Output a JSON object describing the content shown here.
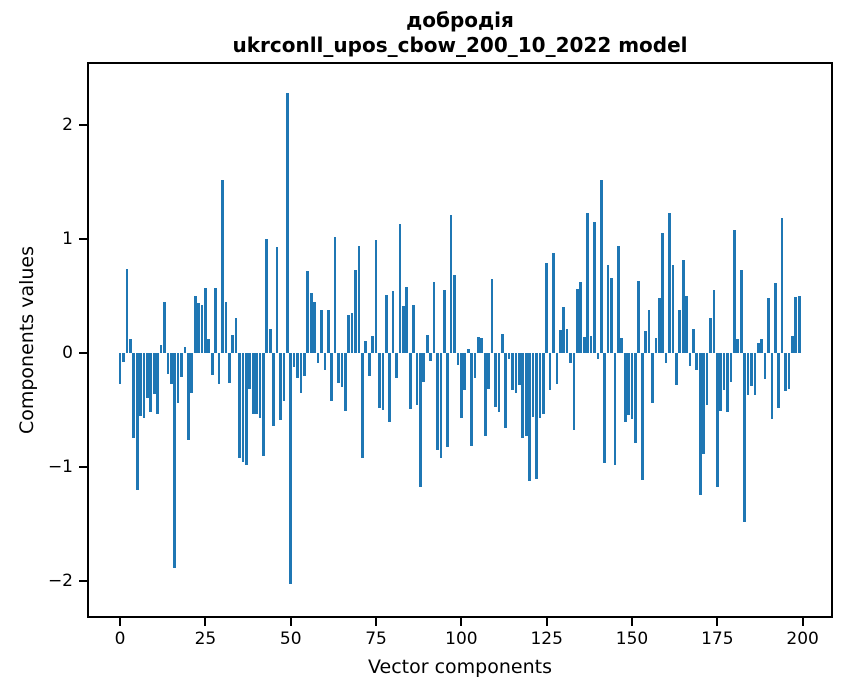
{
  "chart_data": {
    "type": "bar",
    "title_line1": "добродія",
    "title_line2": "ukrconll_upos_cbow_200_10_2022 model",
    "xlabel": "Vector components",
    "ylabel": "Components values",
    "bar_color": "#1f77b4",
    "background_color": "#ffffff",
    "grid": false,
    "legend_position": "none",
    "n_components": 200,
    "x_ticks": [
      0,
      25,
      50,
      75,
      100,
      125,
      150,
      175,
      200
    ],
    "y_ticks": [
      -2,
      -1,
      0,
      1,
      2
    ],
    "xlim": [
      -9.7,
      208.9
    ],
    "ylim": [
      -2.32,
      2.55
    ],
    "values": [
      -0.27,
      -0.08,
      0.74,
      0.12,
      -0.74,
      -1.2,
      -0.55,
      -0.57,
      -0.39,
      -0.52,
      -0.36,
      -0.53,
      0.07,
      0.45,
      -0.18,
      -0.27,
      -1.88,
      -0.44,
      -0.21,
      0.05,
      -0.76,
      -0.35,
      0.5,
      0.44,
      0.42,
      0.57,
      0.12,
      -0.19,
      0.57,
      -0.27,
      1.52,
      0.45,
      -0.26,
      0.16,
      0.31,
      -0.92,
      -0.95,
      -0.98,
      -0.31,
      -0.53,
      -0.53,
      -0.57,
      -0.9,
      1.0,
      0.21,
      -0.64,
      0.93,
      -0.59,
      -0.42,
      2.28,
      -2.02,
      -0.12,
      -0.22,
      -0.35,
      -0.2,
      0.72,
      0.53,
      0.45,
      -0.09,
      0.38,
      -0.15,
      0.38,
      -0.42,
      1.02,
      -0.26,
      -0.3,
      -0.51,
      0.33,
      0.35,
      0.73,
      0.94,
      -0.92,
      0.11,
      -0.2,
      0.15,
      0.99,
      -0.48,
      -0.5,
      0.51,
      -0.6,
      0.54,
      -0.22,
      1.13,
      0.41,
      0.58,
      -0.49,
      0.42,
      -0.45,
      -1.17,
      -0.25,
      0.16,
      -0.07,
      0.62,
      -0.85,
      -0.92,
      0.55,
      -0.82,
      1.21,
      0.68,
      -0.1,
      -0.57,
      -0.32,
      0.04,
      -0.81,
      -0.22,
      0.14,
      0.13,
      -0.73,
      -0.31,
      0.65,
      -0.47,
      -0.52,
      0.17,
      -0.66,
      -0.05,
      -0.32,
      -0.35,
      -0.28,
      -0.74,
      -0.73,
      -1.12,
      -0.56,
      -1.1,
      -0.57,
      -0.53,
      0.79,
      -0.32,
      0.88,
      -0.27,
      0.2,
      0.4,
      0.21,
      -0.09,
      -0.67,
      0.56,
      0.62,
      0.14,
      1.23,
      0.15,
      1.15,
      -0.05,
      1.52,
      -0.96,
      0.77,
      0.66,
      -0.98,
      0.94,
      0.13,
      -0.6,
      -0.54,
      -0.58,
      -0.79,
      0.63,
      -1.11,
      0.19,
      0.38,
      -0.44,
      0.13,
      0.48,
      1.05,
      -0.09,
      1.23,
      0.77,
      -0.28,
      0.38,
      0.82,
      0.5,
      -0.11,
      0.21,
      -0.15,
      -1.24,
      -0.88,
      -0.45,
      0.31,
      0.55,
      -1.17,
      -0.51,
      -0.32,
      -0.52,
      -0.25,
      1.08,
      0.12,
      0.73,
      -1.48,
      -0.37,
      -0.29,
      -0.37,
      0.09,
      0.12,
      -0.23,
      0.48,
      -0.58,
      0.61,
      -0.48,
      1.18,
      -0.33,
      -0.31,
      0.15,
      0.49,
      0.5
    ]
  }
}
